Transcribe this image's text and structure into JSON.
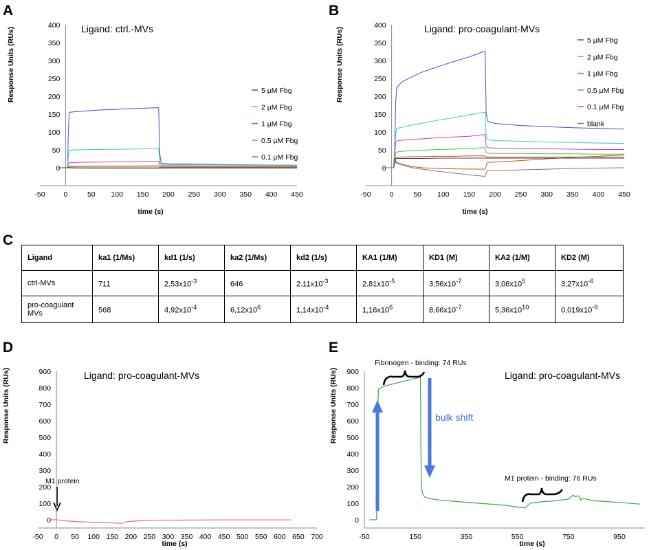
{
  "panels": {
    "A": {
      "letter": "A",
      "chart_data": {
        "type": "line",
        "title": "Ligand: ctrl.-MVs",
        "xlabel": "time (s)",
        "ylabel": "Response Units (RUs)",
        "xlim": [
          -50,
          450
        ],
        "ylim": [
          -50,
          400
        ],
        "xticks": [
          -50,
          0,
          50,
          100,
          150,
          200,
          250,
          300,
          350,
          400,
          450
        ],
        "yticks": [
          0,
          50,
          100,
          150,
          200,
          250,
          300,
          350,
          400
        ],
        "series": [
          {
            "name": "5    µM Fbg",
            "color": "#3a50c8",
            "x": [
              -15,
              4,
              5,
              7,
              20,
              60,
              120,
              180,
              181,
              183,
              186,
              200,
              300,
              450
            ],
            "y": [
              0,
              0,
              80,
              155,
              157,
              161,
              165,
              168,
              168,
              40,
              12,
              11,
              9,
              7
            ]
          },
          {
            "name": "2    µM Fbg",
            "color": "#3cc8c8",
            "x": [
              -15,
              4,
              5,
              7,
              20,
              60,
              120,
              180,
              181,
              183,
              186,
              200,
              300,
              450
            ],
            "y": [
              0,
              0,
              25,
              49,
              50,
              51,
              52,
              54,
              54,
              15,
              10,
              9,
              8,
              7
            ]
          },
          {
            "name": "1    µM Fbg",
            "color": "#c83cc8",
            "x": [
              -15,
              4,
              5,
              7,
              20,
              60,
              120,
              180,
              181,
              183,
              186,
              200,
              300,
              450
            ],
            "y": [
              0,
              0,
              8,
              14,
              15,
              16,
              17,
              18,
              18,
              8,
              6,
              6,
              5,
              5
            ]
          },
          {
            "name": "0.5 µM Fbg",
            "color": "#3cc83c",
            "x": [
              -15,
              4,
              5,
              7,
              20,
              60,
              120,
              180,
              181,
              183,
              186,
              200,
              300,
              450
            ],
            "y": [
              0,
              0,
              3,
              4,
              4,
              5,
              5,
              6,
              6,
              3,
              3,
              3,
              3,
              3
            ]
          },
          {
            "name": "0.1 µM Fbg",
            "color": "#e0402a",
            "x": [
              -15,
              4,
              5,
              7,
              20,
              60,
              120,
              180,
              181,
              183,
              186,
              200,
              300,
              450
            ],
            "y": [
              0,
              0,
              1,
              2,
              2,
              2,
              2,
              2,
              2,
              1,
              1,
              1,
              1,
              1
            ]
          },
          {
            "name": "",
            "color": "#444444",
            "x": [
              -15,
              4,
              20,
              180,
              200,
              300,
              450
            ],
            "y": [
              0,
              0,
              -1,
              -2,
              -1,
              -1,
              -1
            ]
          }
        ]
      }
    },
    "B": {
      "letter": "B",
      "chart_data": {
        "type": "line",
        "title": "Ligand: pro-coagulant-MVs",
        "xlabel": "time (s)",
        "ylabel": "Response Units (RUs)",
        "xlim": [
          -50,
          450
        ],
        "ylim": [
          -50,
          400
        ],
        "xticks": [
          -50,
          0,
          50,
          100,
          150,
          200,
          250,
          300,
          350,
          400,
          450
        ],
        "yticks": [
          0,
          50,
          100,
          150,
          200,
          250,
          300,
          350,
          400
        ],
        "series": [
          {
            "name": "5    µM Fbg",
            "color": "#3a50c8",
            "x": [
              -15,
              4,
              6,
              8,
              10,
              20,
              40,
              60,
              90,
              120,
              150,
              180,
              181,
              183,
              186,
              200,
              250,
              300,
              350,
              400,
              450
            ],
            "y": [
              0,
              0,
              60,
              185,
              225,
              240,
              255,
              268,
              283,
              297,
              310,
              326,
              326,
              150,
              130,
              124,
              118,
              115,
              112,
              110,
              108
            ]
          },
          {
            "name": "2    µM Fbg",
            "color": "#3cc8c8",
            "x": [
              -15,
              4,
              6,
              8,
              10,
              20,
              40,
              60,
              90,
              120,
              150,
              180,
              181,
              183,
              186,
              200,
              250,
              300,
              350,
              400,
              450
            ],
            "y": [
              0,
              0,
              50,
              95,
              110,
              113,
              120,
              125,
              133,
              140,
              148,
              155,
              155,
              85,
              78,
              76,
              74,
              72,
              71,
              69,
              68
            ]
          },
          {
            "name": "1    µM Fbg",
            "color": "#c83cc8",
            "x": [
              -15,
              4,
              6,
              8,
              10,
              20,
              40,
              60,
              90,
              120,
              150,
              180,
              181,
              183,
              186,
              200,
              250,
              300,
              350,
              400,
              450
            ],
            "y": [
              0,
              0,
              40,
              70,
              75,
              77,
              79,
              81,
              84,
              86,
              88,
              93,
              93,
              60,
              56,
              55,
              54,
              53,
              52,
              51,
              51
            ]
          },
          {
            "name": "0.5 µM Fbg",
            "color": "#3cc83c",
            "x": [
              -15,
              4,
              6,
              8,
              10,
              20,
              40,
              60,
              90,
              120,
              150,
              180,
              181,
              183,
              186,
              200,
              250,
              300,
              350,
              400,
              450
            ],
            "y": [
              0,
              0,
              25,
              40,
              44,
              46,
              48,
              49,
              51,
              52,
              54,
              56,
              56,
              42,
              41,
              40,
              40,
              39,
              39,
              38,
              38
            ]
          },
          {
            "name": "0.1 µM Fbg",
            "color": "#e0402a",
            "x": [
              -15,
              4,
              6,
              8,
              10,
              20,
              40,
              60,
              90,
              120,
              150,
              180,
              181,
              183,
              186,
              200,
              250,
              300,
              350,
              400,
              450
            ],
            "y": [
              0,
              0,
              18,
              28,
              30,
              30,
              31,
              31,
              32,
              32,
              33,
              33,
              33,
              30,
              30,
              30,
              30,
              30,
              30,
              30,
              30
            ]
          },
          {
            "name": "blank",
            "color": "#b35a1f",
            "x": [
              -15,
              4,
              8,
              10,
              20,
              40,
              60,
              90,
              120,
              180,
              181,
              185,
              200,
              250,
              300,
              350,
              400,
              450
            ],
            "y": [
              0,
              0,
              20,
              15,
              10,
              3,
              0,
              -2,
              -3,
              -4,
              -4,
              15,
              16,
              20,
              25,
              29,
              32,
              36
            ]
          },
          {
            "name": "",
            "color": "#444444",
            "x": [
              -15,
              4,
              8,
              10,
              20,
              60,
              100,
              140,
              180,
              181,
              185,
              200,
              300,
              450
            ],
            "y": [
              0,
              0,
              25,
              26,
              26,
              26,
              27,
              27,
              27,
              27,
              27,
              27,
              27,
              27
            ]
          },
          {
            "name": "",
            "color": "#777777",
            "x": [
              -15,
              4,
              8,
              10,
              40,
              80,
              120,
              150,
              180,
              181,
              185,
              200,
              250,
              300,
              350,
              450
            ],
            "y": [
              0,
              0,
              20,
              12,
              0,
              -8,
              -15,
              -20,
              -24,
              -24,
              -8,
              -8,
              -6,
              -4,
              -2,
              0
            ]
          }
        ]
      }
    },
    "C": {
      "letter": "C",
      "chart_data": {
        "type": "table",
        "columns": [
          "Ligand",
          "ka1 (1/Ms)",
          "kd1 (1/s)",
          "ka2 (1/Ms)",
          "kd2 (1/s)",
          "KA1 (1/M)",
          "KD1 (M)",
          "KA2 (1/M)",
          "KD2 (M)"
        ],
        "rows": [
          {
            "ligand": "ctrl-MVs",
            "cells": [
              {
                "base": "711",
                "exp": ""
              },
              {
                "base": "2,53x10",
                "exp": "-3"
              },
              {
                "base": "646",
                "exp": ""
              },
              {
                "base": "2.11x10",
                "exp": "-3"
              },
              {
                "base": "2.81x10",
                "exp": "-5"
              },
              {
                "base": "3,56x10",
                "exp": "-7"
              },
              {
                "base": "3,06x10",
                "exp": "5"
              },
              {
                "base": "3,27x10",
                "exp": "-6"
              }
            ]
          },
          {
            "ligand": "pro-coagulant MVs",
            "cells": [
              {
                "base": "568",
                "exp": ""
              },
              {
                "base": "4,92x10",
                "exp": "-4"
              },
              {
                "base": "6,12x10",
                "exp": "6"
              },
              {
                "base": "1,14x10",
                "exp": "-4"
              },
              {
                "base": "1,16x10",
                "exp": "6"
              },
              {
                "base": "8,66x10",
                "exp": "-7"
              },
              {
                "base": "5,36x10",
                "exp": "10"
              },
              {
                "base": "0,019x10",
                "exp": "-9"
              }
            ]
          }
        ]
      }
    },
    "D": {
      "letter": "D",
      "chart_data": {
        "type": "line",
        "title": "Ligand: pro-coagulant-MVs",
        "xlabel": "time (s)",
        "ylabel": "Response Units (RUs)",
        "xlim": [
          -50,
          700
        ],
        "ylim": [
          -50,
          900
        ],
        "xticks": [
          -50,
          0,
          50,
          100,
          150,
          200,
          250,
          300,
          350,
          400,
          450,
          500,
          550,
          600,
          650,
          700
        ],
        "yticks": [
          0,
          100,
          200,
          300,
          400,
          500,
          600,
          700,
          800,
          900
        ],
        "annotations": [
          {
            "text": "M1 protein",
            "x": 0
          }
        ],
        "series": [
          {
            "name": "",
            "color": "#e07070",
            "x": [
              -15,
              0,
              10,
              30,
              60,
              100,
              140,
              175,
              182,
              190,
              210,
              240,
              280,
              350,
              450,
              550,
              630
            ],
            "y": [
              0,
              0,
              -3,
              -8,
              -12,
              -15,
              -18,
              -22,
              -16,
              -12,
              -8,
              -5,
              -3,
              -2,
              -1,
              -1,
              -1
            ]
          }
        ]
      }
    },
    "E": {
      "letter": "E",
      "chart_data": {
        "type": "line",
        "title": "Ligand: pro-coagulant-MVs",
        "xlabel": "time (s)",
        "ylabel": "Response Units (RUs)",
        "xlim": [
          -50,
          1050
        ],
        "ylim": [
          -50,
          900
        ],
        "xticks": [
          -50,
          150,
          350,
          550,
          750,
          950
        ],
        "yticks": [
          0,
          100,
          200,
          300,
          400,
          500,
          600,
          700,
          800,
          900
        ],
        "annotations": [
          {
            "text": "Fibrinogen - binding: 74 RUs"
          },
          {
            "text": "bulk shift"
          },
          {
            "text": "M1 protein - binding: 76 RUs"
          }
        ],
        "series": [
          {
            "name": "",
            "color": "#46a046",
            "x": [
              -30,
              -2,
              0,
              5,
              10,
              20,
              40,
              80,
              120,
              160,
              170,
              172,
              174,
              178,
              185,
              200,
              250,
              300,
              400,
              500,
              560,
              580,
              590,
              600,
              650,
              700,
              750,
              770,
              775,
              790,
              800,
              805,
              850,
              950,
              1030
            ],
            "y": [
              0,
              0,
              500,
              790,
              795,
              805,
              815,
              830,
              845,
              860,
              865,
              400,
              200,
              160,
              140,
              130,
              118,
              112,
              100,
              88,
              75,
              72,
              85,
              100,
              110,
              115,
              125,
              150,
              140,
              145,
              118,
              130,
              115,
              105,
              95
            ]
          }
        ]
      }
    }
  }
}
